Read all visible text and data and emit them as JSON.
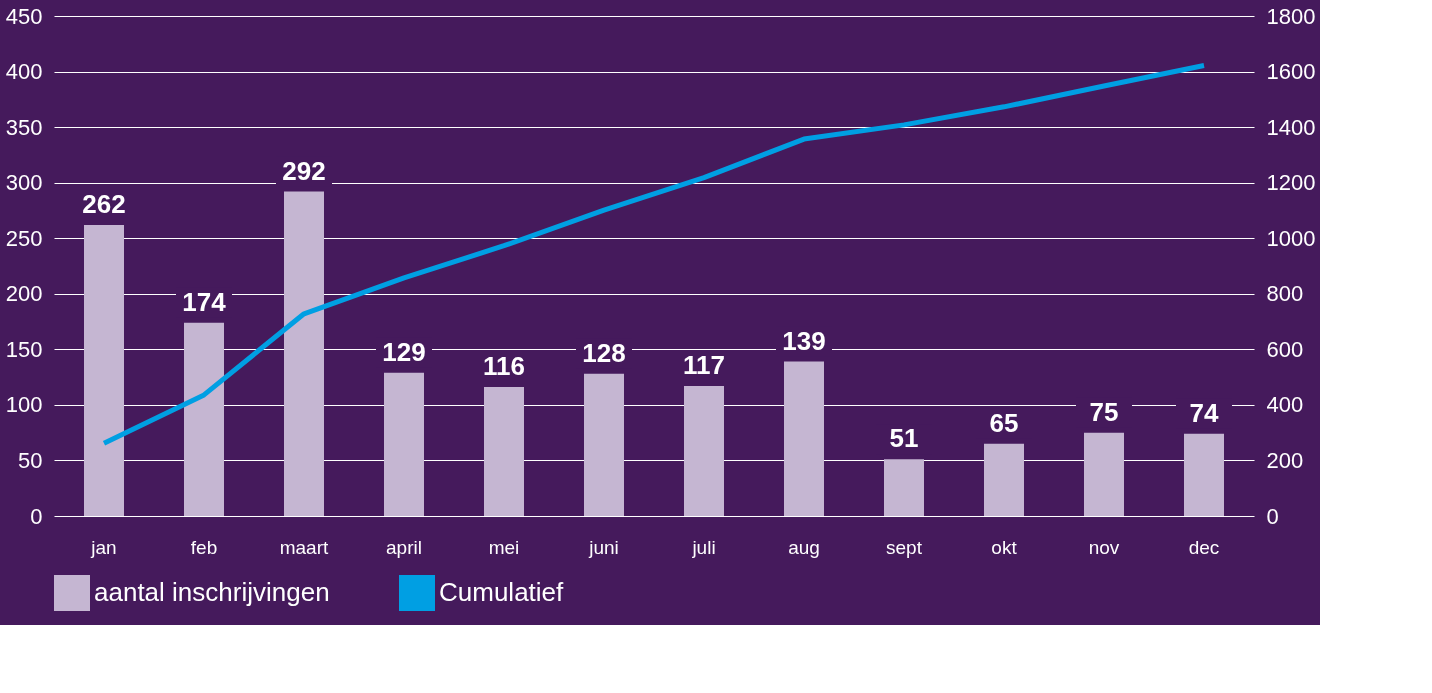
{
  "chart_data": {
    "type": "bar",
    "categories": [
      "jan",
      "feb",
      "maart",
      "april",
      "mei",
      "juni",
      "juli",
      "aug",
      "sept",
      "okt",
      "nov",
      "dec"
    ],
    "series": [
      {
        "name": "aantal inschrijvingen",
        "value_labels": [
          "262",
          "174",
          "292",
          "129",
          "116",
          "128",
          "117",
          "139",
          "51",
          "65",
          "75",
          "74"
        ],
        "color": "#c5b6d2",
        "values": [
          262,
          174,
          292,
          129,
          116,
          128,
          117,
          139,
          51,
          65,
          75,
          74
        ]
      },
      {
        "name": "Cumulatief",
        "type": "line",
        "axis": "y2",
        "color": "#009fe3",
        "values": [
          262,
          436,
          728,
          857,
          973,
          1101,
          1218,
          1357,
          1408,
          1473,
          1548,
          1622
        ]
      }
    ],
    "ylim": [
      0,
      450
    ],
    "yticks": [
      0,
      50,
      100,
      150,
      200,
      250,
      300,
      350,
      400,
      450
    ],
    "y2lim": [
      0,
      1800
    ],
    "y2ticks": [
      0,
      200,
      400,
      600,
      800,
      1000,
      1200,
      1400,
      1600,
      1800
    ],
    "grid": "y",
    "legend": "bottom",
    "line_style": "solid",
    "marker": "none"
  }
}
